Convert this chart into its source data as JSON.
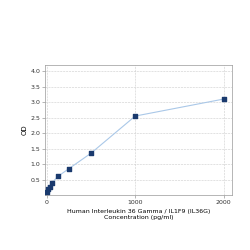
{
  "x_values": [
    0,
    15.6,
    31.2,
    62.5,
    125,
    250,
    500,
    1000,
    2000
  ],
  "y_values": [
    0.1,
    0.18,
    0.25,
    0.4,
    0.6,
    0.85,
    1.35,
    2.55,
    3.1
  ],
  "xlim": [
    -20,
    2100
  ],
  "ylim": [
    0,
    4.2
  ],
  "yticks": [
    0.5,
    1.0,
    1.5,
    2.0,
    2.5,
    3.0,
    3.5,
    4.0
  ],
  "xtick_positions": [
    0,
    1000,
    2000
  ],
  "xtick_labels": [
    "0",
    "1000",
    "2000"
  ],
  "xlabel_line1": "Human Interleukin 36 Gamma / IL1F9 (IL36G)",
  "xlabel_line2": "Concentration (pg/ml)",
  "ylabel": "OD",
  "line_color": "#aac8e8",
  "marker_color": "#1a3a6e",
  "background_color": "#ffffff",
  "grid_color": "#cccccc",
  "label_fontsize": 4.5,
  "tick_fontsize": 4.5,
  "ylabel_fontsize": 5
}
